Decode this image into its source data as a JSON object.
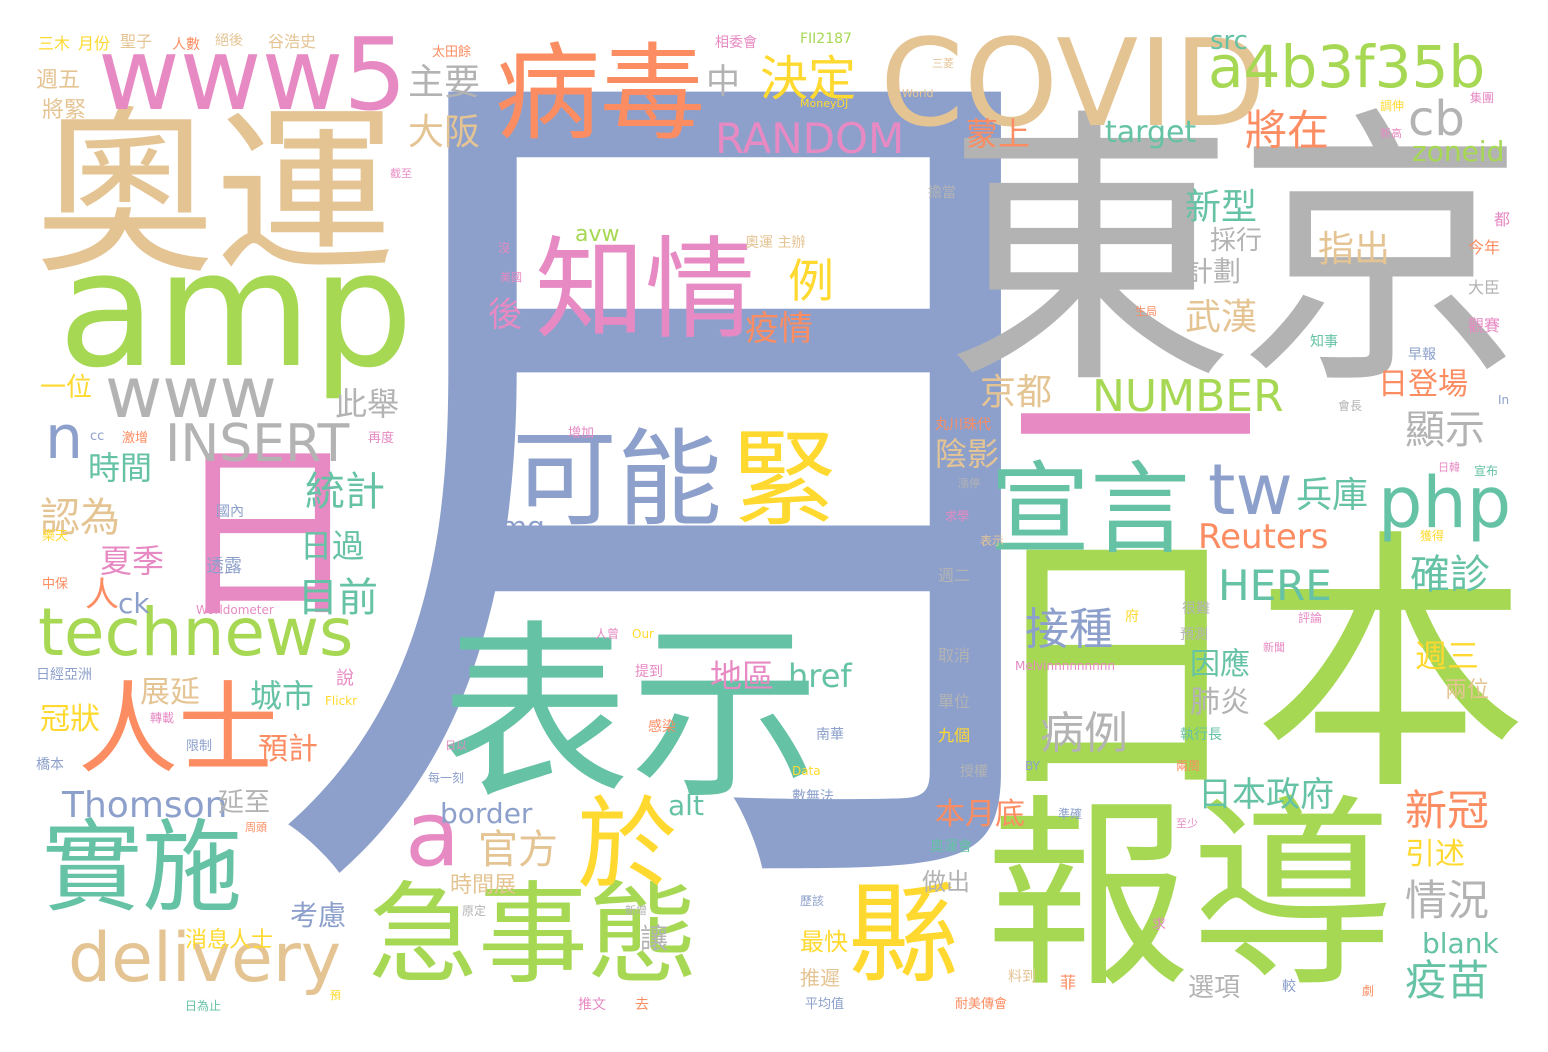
{
  "palette": {
    "blue": "#8da0cb",
    "gray": "#b3b3b3",
    "green": "#a6d854",
    "teal": "#66c2a5",
    "orange": "#fc8d62",
    "pink": "#e78ac3",
    "tan": "#e5c494",
    "yellow": "#ffd92f",
    "background": "#ffffff"
  },
  "words": [
    {
      "text": "月",
      "color": "blue",
      "rank": 1
    },
    {
      "text": "東京",
      "color": "gray",
      "rank": 2
    },
    {
      "text": "日本",
      "color": "green",
      "rank": 3
    },
    {
      "text": "報導",
      "color": "green",
      "rank": 4
    },
    {
      "text": "表示",
      "color": "teal",
      "rank": 5
    },
    {
      "text": "奧運",
      "color": "tan",
      "rank": 6
    },
    {
      "text": "一",
      "color": "pink",
      "rank": 7
    },
    {
      "text": "日",
      "color": "pink",
      "rank": 8
    },
    {
      "text": "amp",
      "color": "green",
      "rank": 9
    },
    {
      "text": "COVID",
      "color": "tan",
      "rank": 10
    },
    {
      "text": "病毒",
      "color": "orange",
      "rank": 11
    },
    {
      "text": "www5",
      "color": "pink",
      "rank": 12
    },
    {
      "text": "急事態",
      "color": "green",
      "rank": 13
    },
    {
      "text": "知情",
      "color": "pink",
      "rank": 14
    },
    {
      "text": "可能",
      "color": "blue",
      "rank": 15
    },
    {
      "text": "緊",
      "color": "yellow",
      "rank": 16
    },
    {
      "text": "宣言",
      "color": "teal",
      "rank": 17
    },
    {
      "text": "實施",
      "color": "teal",
      "rank": 18
    },
    {
      "text": "人士",
      "color": "orange",
      "rank": 19
    },
    {
      "text": "縣",
      "color": "yellow",
      "rank": 20
    },
    {
      "text": "於",
      "color": "yellow",
      "rank": 21
    },
    {
      "text": "a4b3f35b",
      "color": "green",
      "rank": 22
    },
    {
      "text": "technews",
      "color": "green",
      "rank": 23
    },
    {
      "text": "delivery",
      "color": "tan",
      "rank": 24
    },
    {
      "text": "php",
      "color": "teal",
      "rank": 25
    },
    {
      "text": "www",
      "color": "gray",
      "rank": 26
    },
    {
      "text": "INSERT",
      "color": "gray",
      "rank": 27
    },
    {
      "text": "tw",
      "color": "blue",
      "rank": 28
    },
    {
      "text": "a",
      "color": "pink",
      "rank": 29
    },
    {
      "text": "n",
      "color": "blue",
      "rank": 30
    },
    {
      "text": "決定",
      "color": "yellow",
      "rank": 31
    },
    {
      "text": "cb",
      "color": "gray",
      "rank": 32
    },
    {
      "text": "將在",
      "color": "orange",
      "rank": 33
    },
    {
      "text": "RANDOM",
      "color": "pink",
      "rank": 34
    },
    {
      "text": "NUMBER",
      "color": "green",
      "rank": 35
    },
    {
      "text": "HERE",
      "color": "teal",
      "rank": 36
    },
    {
      "text": "接種",
      "color": "blue",
      "rank": 37
    },
    {
      "text": "病例",
      "color": "gray",
      "rank": 38
    },
    {
      "text": "確診",
      "color": "teal",
      "rank": 39
    },
    {
      "text": "疫苗",
      "color": "teal",
      "rank": 40
    },
    {
      "text": "新冠",
      "color": "orange",
      "rank": 41
    },
    {
      "text": "情況",
      "color": "gray",
      "rank": 42
    },
    {
      "text": "統計",
      "color": "teal",
      "rank": 43
    },
    {
      "text": "目前",
      "color": "teal",
      "rank": 44
    },
    {
      "text": "Thomson",
      "color": "blue",
      "rank": 45
    },
    {
      "text": "官方",
      "color": "tan",
      "rank": 46
    },
    {
      "text": "Reuters",
      "color": "orange",
      "rank": 47
    },
    {
      "text": "日本政府",
      "color": "teal",
      "rank": 48
    },
    {
      "text": "兵庫",
      "color": "teal",
      "rank": 49
    },
    {
      "text": "指出",
      "color": "tan",
      "rank": 50
    },
    {
      "text": "顯示",
      "color": "gray",
      "rank": 51
    },
    {
      "text": "京都",
      "color": "tan",
      "rank": 52
    },
    {
      "text": "武漢",
      "color": "tan",
      "rank": 53
    },
    {
      "text": "新型",
      "color": "teal",
      "rank": 54
    },
    {
      "text": "計劃",
      "color": "gray",
      "rank": 55
    },
    {
      "text": "採行",
      "color": "gray",
      "rank": 56
    },
    {
      "text": "日登場",
      "color": "orange",
      "rank": 57
    },
    {
      "text": "大阪",
      "color": "tan",
      "rank": 58
    },
    {
      "text": "主要",
      "color": "gray",
      "rank": 59
    },
    {
      "text": "中",
      "color": "gray",
      "rank": 60
    },
    {
      "text": "蒙上",
      "color": "orange",
      "rank": 61
    },
    {
      "text": "陰影",
      "color": "tan",
      "rank": 62
    },
    {
      "text": "例",
      "color": "yellow",
      "rank": 63
    },
    {
      "text": "疫情",
      "color": "orange",
      "rank": 64
    },
    {
      "text": "後",
      "color": "pink",
      "rank": 65
    },
    {
      "text": "此舉",
      "color": "gray",
      "rank": 66
    },
    {
      "text": "時間",
      "color": "teal",
      "rank": 67
    },
    {
      "text": "認為",
      "color": "tan",
      "rank": 68
    },
    {
      "text": "夏季",
      "color": "pink",
      "rank": 69
    },
    {
      "text": "人",
      "color": "orange",
      "rank": 70
    },
    {
      "text": "ck",
      "color": "blue",
      "rank": 71
    },
    {
      "text": "日過",
      "color": "teal",
      "rank": 72
    },
    {
      "text": "地區",
      "color": "pink",
      "rank": 73
    },
    {
      "text": "href",
      "color": "teal",
      "rank": 74
    },
    {
      "text": "城市",
      "color": "teal",
      "rank": 75
    },
    {
      "text": "展延",
      "color": "tan",
      "rank": 76
    },
    {
      "text": "冠狀",
      "color": "yellow",
      "rank": 77
    },
    {
      "text": "預計",
      "color": "orange",
      "rank": 78
    },
    {
      "text": "因應",
      "color": "teal",
      "rank": 79
    },
    {
      "text": "肺炎",
      "color": "gray",
      "rank": 80
    },
    {
      "text": "週三",
      "color": "yellow",
      "rank": 81
    },
    {
      "text": "兩位",
      "color": "tan",
      "rank": 82
    },
    {
      "text": "延至",
      "color": "gray",
      "rank": 83
    },
    {
      "text": "border",
      "color": "blue",
      "rank": 84
    },
    {
      "text": "alt",
      "color": "teal",
      "rank": 85
    },
    {
      "text": "時間展",
      "color": "tan",
      "rank": 86
    },
    {
      "text": "考慮",
      "color": "blue",
      "rank": 87
    },
    {
      "text": "消息人士",
      "color": "yellow",
      "rank": 88
    },
    {
      "text": "讓",
      "color": "gray",
      "rank": 89
    },
    {
      "text": "本月底",
      "color": "orange",
      "rank": 90
    },
    {
      "text": "做出",
      "color": "gray",
      "rank": 91
    },
    {
      "text": "最快",
      "color": "yellow",
      "rank": 92
    },
    {
      "text": "推遲",
      "color": "tan",
      "rank": 93
    },
    {
      "text": "引述",
      "color": "yellow",
      "rank": 94
    },
    {
      "text": "blank",
      "color": "teal",
      "rank": 95
    },
    {
      "text": "選項",
      "color": "gray",
      "rank": 96
    },
    {
      "text": "src",
      "color": "teal",
      "rank": 97
    },
    {
      "text": "target",
      "color": "teal",
      "rank": 98
    },
    {
      "text": "zoneid",
      "color": "green",
      "rank": 99
    },
    {
      "text": "img",
      "color": "blue",
      "rank": 100
    },
    {
      "text": "avw",
      "color": "green",
      "rank": 101
    },
    {
      "text": "一位",
      "color": "yellow",
      "rank": 102
    },
    {
      "text": "週五",
      "color": "tan",
      "rank": 103
    },
    {
      "text": "將緊",
      "color": "tan",
      "rank": 104
    },
    {
      "text": "三木",
      "color": "yellow",
      "rank": 105
    },
    {
      "text": "月份",
      "color": "yellow",
      "rank": 106
    },
    {
      "text": "聖子",
      "color": "tan",
      "rank": 107
    },
    {
      "text": "人數",
      "color": "orange",
      "rank": 108
    },
    {
      "text": "絕後",
      "color": "tan",
      "rank": 109
    },
    {
      "text": "谷浩史",
      "color": "tan",
      "rank": 110
    },
    {
      "text": "太田餘",
      "color": "orange",
      "rank": 111
    },
    {
      "text": "相委會",
      "color": "pink",
      "rank": 112
    },
    {
      "text": "FII2187",
      "color": "green",
      "rank": 113
    },
    {
      "text": "三菱",
      "color": "tan",
      "rank": 114
    },
    {
      "text": "MoneyDJ",
      "color": "yellow",
      "rank": 115
    },
    {
      "text": "World",
      "color": "tan",
      "rank": 116
    },
    {
      "text": "新高",
      "color": "pink",
      "rank": 117
    },
    {
      "text": "調伸",
      "color": "yellow",
      "rank": 118
    },
    {
      "text": "集團",
      "color": "pink",
      "rank": 119
    },
    {
      "text": "都",
      "color": "pink",
      "rank": 120
    },
    {
      "text": "今年",
      "color": "orange",
      "rank": 121
    },
    {
      "text": "大臣",
      "color": "gray",
      "rank": 122
    },
    {
      "text": "觀賽",
      "color": "pink",
      "rank": 123
    },
    {
      "text": "早報",
      "color": "blue",
      "rank": 124
    },
    {
      "text": "知事",
      "color": "teal",
      "rank": 125
    },
    {
      "text": "會長",
      "color": "gray",
      "rank": 126
    },
    {
      "text": "In",
      "color": "blue",
      "rank": 127
    },
    {
      "text": "宣布",
      "color": "teal",
      "rank": 128
    },
    {
      "text": "日韓",
      "color": "pink",
      "rank": 129
    },
    {
      "text": "擔當",
      "color": "gray",
      "rank": 130
    },
    {
      "text": "奧運 主辦",
      "color": "tan",
      "rank": 131
    },
    {
      "text": "生局",
      "color": "orange",
      "rank": 132
    },
    {
      "text": "本文",
      "color": "blue",
      "rank": 133
    },
    {
      "text": "美國",
      "color": "pink",
      "rank": 134
    },
    {
      "text": "沒",
      "color": "pink",
      "rank": 135
    },
    {
      "text": "須",
      "color": "blue",
      "rank": 136
    },
    {
      "text": "截至",
      "color": "pink",
      "rank": 137
    },
    {
      "text": "丸川珠代",
      "color": "orange",
      "rank": 138
    },
    {
      "text": "再度",
      "color": "pink",
      "rank": 139
    },
    {
      "text": "增加",
      "color": "pink",
      "rank": 140
    },
    {
      "text": "激增",
      "color": "orange",
      "rank": 141
    },
    {
      "text": "cc",
      "color": "blue",
      "rank": 142
    },
    {
      "text": "國內",
      "color": "blue",
      "rank": 143
    },
    {
      "text": "透露",
      "color": "blue",
      "rank": 144
    },
    {
      "text": "樂天",
      "color": "yellow",
      "rank": 145
    },
    {
      "text": "中保",
      "color": "orange",
      "rank": 146
    },
    {
      "text": "Worldometer",
      "color": "pink",
      "rank": 147
    },
    {
      "text": "日經亞洲",
      "color": "blue",
      "rank": 148
    },
    {
      "text": "轉載",
      "color": "pink",
      "rank": 149
    },
    {
      "text": "限制",
      "color": "blue",
      "rank": 150
    },
    {
      "text": "橋本",
      "color": "blue",
      "rank": 151
    },
    {
      "text": "說",
      "color": "pink",
      "rank": 152
    },
    {
      "text": "Flickr",
      "color": "yellow",
      "rank": 153
    },
    {
      "text": "人曾",
      "color": "pink",
      "rank": 154
    },
    {
      "text": "Our",
      "color": "yellow",
      "rank": 155
    },
    {
      "text": "提到",
      "color": "pink",
      "rank": 156
    },
    {
      "text": "感染",
      "color": "orange",
      "rank": 157
    },
    {
      "text": "南華",
      "color": "blue",
      "rank": 158
    },
    {
      "text": "日以",
      "color": "pink",
      "rank": 159
    },
    {
      "text": "每一刻",
      "color": "blue",
      "rank": 160
    },
    {
      "text": "Data",
      "color": "yellow",
      "rank": 161
    },
    {
      "text": "數無法",
      "color": "blue",
      "rank": 162
    },
    {
      "text": "周頭",
      "color": "orange",
      "rank": 163
    },
    {
      "text": "原定",
      "color": "gray",
      "rank": 164
    },
    {
      "text": "新增",
      "color": "gray",
      "rank": 165
    },
    {
      "text": "歷該",
      "color": "blue",
      "rank": 166
    },
    {
      "text": "日為止",
      "color": "teal",
      "rank": 167
    },
    {
      "text": "預",
      "color": "yellow",
      "rank": 168
    },
    {
      "text": "推文",
      "color": "pink",
      "rank": 169
    },
    {
      "text": "去",
      "color": "orange",
      "rank": 170
    },
    {
      "text": "平均值",
      "color": "blue",
      "rank": 171
    },
    {
      "text": "料到",
      "color": "tan",
      "rank": 172
    },
    {
      "text": "耐美傳會",
      "color": "orange",
      "rank": 173
    },
    {
      "text": "菲",
      "color": "orange",
      "rank": 174
    },
    {
      "text": "較",
      "color": "blue",
      "rank": 175
    },
    {
      "text": "劇",
      "color": "orange",
      "rank": 176
    },
    {
      "text": "求",
      "color": "pink",
      "rank": 177
    },
    {
      "text": "奧運會",
      "color": "teal",
      "rank": 178
    },
    {
      "text": "準確",
      "color": "blue",
      "rank": 179
    },
    {
      "text": "至少",
      "color": "pink",
      "rank": 180
    },
    {
      "text": "兩周",
      "color": "orange",
      "rank": 181
    },
    {
      "text": "BY",
      "color": "blue",
      "rank": 182
    },
    {
      "text": "執行長",
      "color": "teal",
      "rank": 183
    },
    {
      "text": "授權",
      "color": "gray",
      "rank": 184
    },
    {
      "text": "九個",
      "color": "yellow",
      "rank": 185
    },
    {
      "text": "單位",
      "color": "gray",
      "rank": 186
    },
    {
      "text": "Melvinnnnnnnnn",
      "color": "pink",
      "rank": 187
    },
    {
      "text": "取消",
      "color": "gray",
      "rank": 188
    },
    {
      "text": "預測",
      "color": "gray",
      "rank": 189
    },
    {
      "text": "新聞",
      "color": "pink",
      "rank": 190
    },
    {
      "text": "很難",
      "color": "gray",
      "rank": 191
    },
    {
      "text": "府",
      "color": "yellow",
      "rank": 192
    },
    {
      "text": "評論",
      "color": "pink",
      "rank": 193
    },
    {
      "text": "獲得",
      "color": "yellow",
      "rank": 194
    },
    {
      "text": "週二",
      "color": "gray",
      "rank": 195
    },
    {
      "text": "哥好",
      "color": "blue",
      "rank": 196
    },
    {
      "text": "漲停",
      "color": "gray",
      "rank": 197
    },
    {
      "text": "求學",
      "color": "pink",
      "rank": 198
    },
    {
      "text": "表示",
      "color": "tan",
      "rank": 199
    }
  ]
}
